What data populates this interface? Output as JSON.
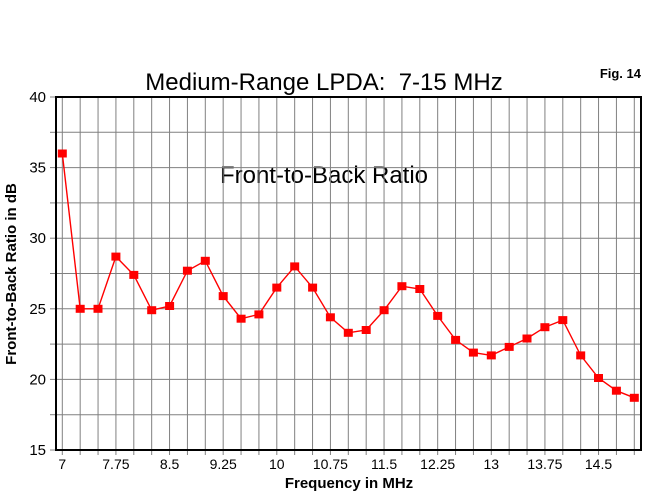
{
  "page": {
    "title_line1": "Medium-Range LPDA:  7-15 MHz",
    "title_line2": "Front-to-Back Ratio",
    "fig_label": "Fig. 14"
  },
  "chart_data": {
    "type": "line",
    "title": "Medium-Range LPDA: 7-15 MHz  Front-to-Back Ratio",
    "xlabel": "Frequency in MHz",
    "ylabel": "Front-to-Back Ratio in dB",
    "xlim": [
      7,
      15
    ],
    "ylim": [
      15,
      40
    ],
    "x_minor_step": 0.25,
    "y_minor_step": 2.5,
    "grid": true,
    "legend": "none",
    "x_tick_labels": [
      "7",
      "7.75",
      "8.5",
      "9.25",
      "10",
      "10.75",
      "11.5",
      "12.25",
      "13",
      "13.75",
      "14.5"
    ],
    "x_tick_values": [
      7,
      7.75,
      8.5,
      9.25,
      10,
      10.75,
      11.5,
      12.25,
      13,
      13.75,
      14.5
    ],
    "y_tick_values": [
      40,
      35,
      30,
      25,
      20,
      15
    ],
    "series": [
      {
        "name": "Front-to-Back Ratio",
        "marker": "square",
        "x": [
          7.0,
          7.25,
          7.5,
          7.75,
          8.0,
          8.25,
          8.5,
          8.75,
          9.0,
          9.25,
          9.5,
          9.75,
          10.0,
          10.25,
          10.5,
          10.75,
          11.0,
          11.25,
          11.5,
          11.75,
          12.0,
          12.25,
          12.5,
          12.75,
          13.0,
          13.25,
          13.5,
          13.75,
          14.0,
          14.25,
          14.5,
          14.75,
          15.0
        ],
        "y": [
          36.0,
          25.0,
          25.0,
          28.7,
          27.4,
          24.9,
          25.2,
          27.7,
          28.4,
          25.9,
          24.3,
          24.6,
          26.5,
          28.0,
          26.5,
          24.4,
          23.3,
          23.5,
          24.9,
          26.6,
          26.4,
          24.5,
          22.8,
          21.9,
          21.7,
          22.3,
          22.9,
          23.7,
          24.2,
          21.7,
          20.1,
          19.2,
          18.7
        ]
      }
    ],
    "colors": {
      "series": "#FF0000",
      "grid": "#808080",
      "axis": "#000000",
      "background": "#FFFFFF",
      "text": "#000000"
    }
  }
}
